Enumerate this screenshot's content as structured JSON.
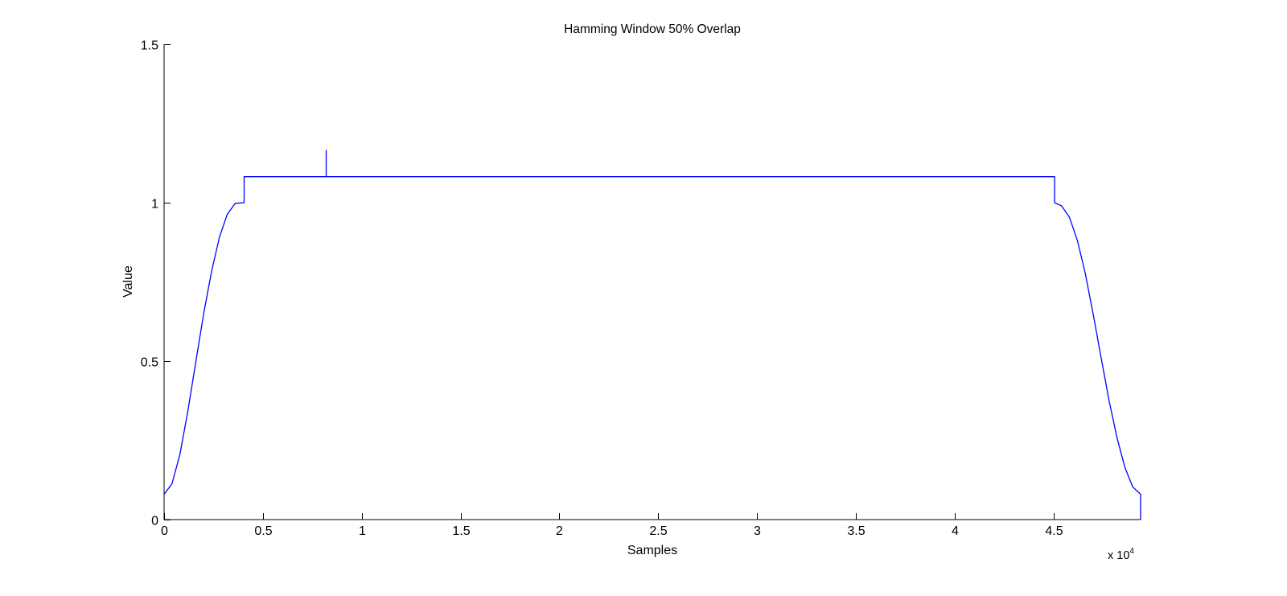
{
  "chart_data": {
    "type": "line",
    "title": "Hamming Window 50% Overlap",
    "xlabel": "Samples",
    "ylabel": "Value",
    "x_exponent_label": "x 10",
    "x_exponent_power": "4",
    "xlim": [
      0,
      49400
    ],
    "ylim": [
      0,
      1.5
    ],
    "xticks": [
      0,
      5000,
      10000,
      15000,
      20000,
      25000,
      30000,
      35000,
      40000,
      45000
    ],
    "xtick_labels": [
      "0",
      "0.5",
      "1",
      "1.5",
      "2",
      "2.5",
      "3",
      "3.5",
      "4",
      "4.5"
    ],
    "yticks": [
      0,
      0.5,
      1,
      1.5
    ],
    "ytick_labels": [
      "0",
      "0.5",
      "1",
      "1.5"
    ],
    "grid": false,
    "line_color": "#0000ff",
    "series": [
      {
        "x": [
          0,
          400,
          800,
          1200,
          1600,
          2000,
          2400,
          2800,
          3200,
          3600,
          4000,
          4050,
          4050,
          8200,
          8200,
          8200,
          45050,
          45050,
          45400,
          45800,
          46200,
          46600,
          47000,
          47400,
          47800,
          48200,
          48600,
          49000,
          49400,
          49400
        ],
        "y": [
          0.08,
          0.113,
          0.206,
          0.342,
          0.496,
          0.648,
          0.783,
          0.891,
          0.964,
          0.998,
          1.0,
          1.0,
          1.082,
          1.082,
          1.165,
          1.082,
          1.082,
          1.0,
          0.99,
          0.954,
          0.881,
          0.777,
          0.649,
          0.511,
          0.377,
          0.26,
          0.166,
          0.103,
          0.08,
          0.0
        ]
      }
    ]
  }
}
